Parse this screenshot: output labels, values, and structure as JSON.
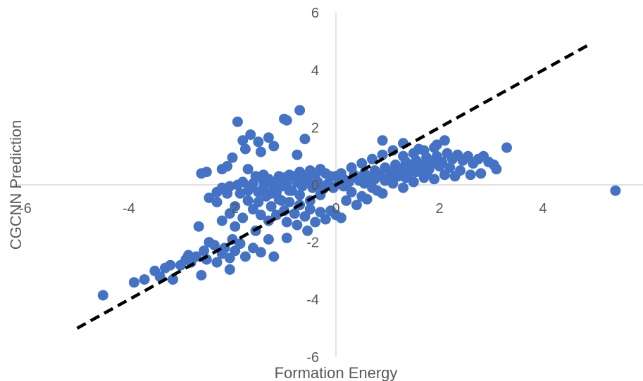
{
  "chart_data": {
    "type": "scatter",
    "title": "",
    "xlabel": "Formation Energy",
    "ylabel": "CGCNN Prediction",
    "xlim": [
      -6,
      6
    ],
    "ylim": [
      -6,
      6
    ],
    "x_ticks": [
      "-6",
      "-4",
      "-2",
      "0",
      "2",
      "4",
      "6"
    ],
    "y_ticks": [
      "-6",
      "-4",
      "-2",
      "0",
      "2",
      "4",
      "6"
    ],
    "x_tick_values": [
      -6,
      -4,
      -2,
      0,
      2,
      4,
      6
    ],
    "y_tick_values": [
      -6,
      -4,
      -2,
      0,
      2,
      4,
      6
    ],
    "grid": false,
    "legend": "none",
    "colors": {
      "points": "#4472C4",
      "reference_line": "#000000",
      "axis": "#D9D9D9",
      "text": "#595959"
    },
    "reference_line": {
      "style": "dashed",
      "x": [
        -5,
        4.9
      ],
      "y": [
        -5,
        4.9
      ]
    },
    "series": [
      {
        "points": [
          [
            -4.5,
            -3.85
          ],
          [
            -3.9,
            -3.4
          ],
          [
            -3.7,
            -3.3
          ],
          [
            -3.5,
            -3.0
          ],
          [
            -3.4,
            -3.2
          ],
          [
            -3.3,
            -2.9
          ],
          [
            -3.2,
            -2.8
          ],
          [
            -3.15,
            -3.3
          ],
          [
            -3.0,
            -2.8
          ],
          [
            -2.9,
            -2.6
          ],
          [
            -2.85,
            -2.45
          ],
          [
            -2.8,
            -2.7
          ],
          [
            -2.7,
            -2.5
          ],
          [
            -2.6,
            -3.15
          ],
          [
            -2.55,
            -2.3
          ],
          [
            -2.5,
            -2.6
          ],
          [
            -2.45,
            -2.0
          ],
          [
            -2.35,
            -2.1
          ],
          [
            -2.3,
            -2.7
          ],
          [
            -2.2,
            -2.4
          ],
          [
            -2.15,
            -2.2
          ],
          [
            -2.05,
            -2.95
          ],
          [
            -2.05,
            -2.55
          ],
          [
            -2.0,
            -1.9
          ],
          [
            -1.95,
            -2.3
          ],
          [
            -1.85,
            -2.05
          ],
          [
            -1.75,
            -2.5
          ],
          [
            -1.6,
            -2.2
          ],
          [
            -1.45,
            -2.35
          ],
          [
            -1.2,
            -2.5
          ],
          [
            -1.3,
            -1.9
          ],
          [
            -1.55,
            -1.6
          ],
          [
            -2.2,
            -1.25
          ],
          [
            -1.95,
            -1.45
          ],
          [
            -2.65,
            -1.45
          ],
          [
            -2.05,
            -1.0
          ],
          [
            -2.45,
            -0.45
          ],
          [
            -2.3,
            -0.25
          ],
          [
            -2.2,
            -0.1
          ],
          [
            -2.05,
            -0.05
          ],
          [
            -1.9,
            0.0
          ],
          [
            -1.8,
            0.1
          ],
          [
            -1.7,
            -0.2
          ],
          [
            -1.6,
            0.05
          ],
          [
            -1.5,
            -0.25
          ],
          [
            -1.4,
            0.15
          ],
          [
            -1.3,
            0.2
          ],
          [
            -1.2,
            0.1
          ],
          [
            -1.1,
            0.3
          ],
          [
            -1.0,
            0.25
          ],
          [
            -0.9,
            0.35
          ],
          [
            -0.8,
            0.3
          ],
          [
            -0.7,
            0.45
          ],
          [
            -0.6,
            0.3
          ],
          [
            -0.5,
            0.5
          ],
          [
            -0.4,
            0.35
          ],
          [
            -0.3,
            0.55
          ],
          [
            -0.2,
            0.4
          ],
          [
            -0.1,
            0.3
          ],
          [
            -1.5,
            -0.6
          ],
          [
            -1.35,
            -0.4
          ],
          [
            -1.25,
            -0.75
          ],
          [
            -1.1,
            -0.5
          ],
          [
            -1.0,
            -0.9
          ],
          [
            -0.9,
            -0.6
          ],
          [
            -0.8,
            -1.0
          ],
          [
            -0.7,
            -0.7
          ],
          [
            -0.6,
            -1.1
          ],
          [
            -0.5,
            -0.85
          ],
          [
            -0.4,
            -1.3
          ],
          [
            -0.3,
            -0.95
          ],
          [
            -0.2,
            -1.2
          ],
          [
            -0.1,
            -0.9
          ],
          [
            0.0,
            -1.05
          ],
          [
            0.1,
            -1.15
          ],
          [
            -1.6,
            -0.85
          ],
          [
            -1.45,
            -1.05
          ],
          [
            -1.3,
            -1.25
          ],
          [
            -1.15,
            -1.05
          ],
          [
            -0.95,
            -1.3
          ],
          [
            -0.75,
            -1.4
          ],
          [
            -0.55,
            -1.6
          ],
          [
            -0.95,
            -1.85
          ],
          [
            -1.8,
            -1.15
          ],
          [
            -1.95,
            -0.75
          ],
          [
            -1.85,
            -0.3
          ],
          [
            -1.7,
            -0.55
          ],
          [
            -1.55,
            0.3
          ],
          [
            -1.4,
            -0.1
          ],
          [
            -1.25,
            0.05
          ],
          [
            -1.15,
            -0.25
          ],
          [
            -1.05,
            -0.05
          ],
          [
            -0.95,
            0.05
          ],
          [
            -0.85,
            -0.2
          ],
          [
            -0.75,
            0.1
          ],
          [
            -0.65,
            -0.05
          ],
          [
            -0.55,
            0.15
          ],
          [
            -0.45,
            -0.1
          ],
          [
            -0.35,
            0.1
          ],
          [
            -0.25,
            -0.15
          ],
          [
            -0.15,
            0.05
          ],
          [
            -0.05,
            -0.1
          ],
          [
            -1.8,
            1.55
          ],
          [
            -1.9,
            2.2
          ],
          [
            -1.65,
            1.75
          ],
          [
            -1.5,
            1.5
          ],
          [
            -1.3,
            1.65
          ],
          [
            -1.2,
            1.35
          ],
          [
            -1.45,
            1.15
          ],
          [
            -1.75,
            1.25
          ],
          [
            -2.0,
            0.95
          ],
          [
            -2.1,
            0.65
          ],
          [
            -2.2,
            0.55
          ],
          [
            -2.5,
            0.45
          ],
          [
            -2.6,
            0.4
          ],
          [
            -1.0,
            2.3
          ],
          [
            -0.95,
            2.25
          ],
          [
            -0.7,
            2.6
          ],
          [
            -0.6,
            1.6
          ],
          [
            -0.75,
            1.05
          ],
          [
            -1.7,
            0.55
          ],
          [
            -1.4,
            0.35
          ],
          [
            0.05,
            0.05
          ],
          [
            0.15,
            0.2
          ],
          [
            0.25,
            0.1
          ],
          [
            0.35,
            0.3
          ],
          [
            0.45,
            0.15
          ],
          [
            0.55,
            0.4
          ],
          [
            0.65,
            0.25
          ],
          [
            0.75,
            0.5
          ],
          [
            0.85,
            0.35
          ],
          [
            0.95,
            0.6
          ],
          [
            1.05,
            0.45
          ],
          [
            1.15,
            0.7
          ],
          [
            1.25,
            0.55
          ],
          [
            1.35,
            0.8
          ],
          [
            1.45,
            0.6
          ],
          [
            1.55,
            0.85
          ],
          [
            1.65,
            0.7
          ],
          [
            1.75,
            0.95
          ],
          [
            1.85,
            0.75
          ],
          [
            1.95,
            1.0
          ],
          [
            2.05,
            0.8
          ],
          [
            2.15,
            1.1
          ],
          [
            2.25,
            0.9
          ],
          [
            2.35,
            1.05
          ],
          [
            2.45,
            0.85
          ],
          [
            2.55,
            1.0
          ],
          [
            2.65,
            0.75
          ],
          [
            2.75,
            0.9
          ],
          [
            2.85,
            1.0
          ],
          [
            2.95,
            0.8
          ],
          [
            3.05,
            0.7
          ],
          [
            3.1,
            0.55
          ],
          [
            3.3,
            1.3
          ],
          [
            2.8,
            0.4
          ],
          [
            2.6,
            0.35
          ],
          [
            2.1,
            1.55
          ],
          [
            1.95,
            1.4
          ],
          [
            1.6,
            1.25
          ],
          [
            1.3,
            1.45
          ],
          [
            0.9,
            1.55
          ],
          [
            0.3,
            -0.25
          ],
          [
            0.5,
            -0.4
          ],
          [
            0.7,
            -0.1
          ],
          [
            0.9,
            -0.3
          ],
          [
            1.1,
            0.05
          ],
          [
            1.3,
            -0.1
          ],
          [
            1.5,
            0.1
          ],
          [
            1.7,
            0.25
          ],
          [
            1.9,
            0.2
          ],
          [
            2.1,
            0.35
          ],
          [
            2.3,
            0.3
          ],
          [
            0.2,
            -0.55
          ],
          [
            0.4,
            -0.7
          ],
          [
            0.6,
            -0.5
          ],
          [
            0.8,
            -0.2
          ],
          [
            1.0,
            0.2
          ],
          [
            1.2,
            0.3
          ],
          [
            1.4,
            0.4
          ],
          [
            1.6,
            0.5
          ],
          [
            1.8,
            0.55
          ],
          [
            2.0,
            0.65
          ],
          [
            2.2,
            0.6
          ],
          [
            2.4,
            0.5
          ],
          [
            0.1,
            0.4
          ],
          [
            0.3,
            0.6
          ],
          [
            0.5,
            0.75
          ],
          [
            0.7,
            0.9
          ],
          [
            0.9,
            1.05
          ],
          [
            1.1,
            1.2
          ],
          [
            1.3,
            1.0
          ],
          [
            1.5,
            1.1
          ],
          [
            1.7,
            1.2
          ],
          [
            1.9,
            1.3
          ],
          [
            0.0,
            0.3
          ],
          [
            0.15,
            -0.05
          ],
          [
            0.35,
            0.35
          ],
          [
            0.55,
            0.05
          ],
          [
            0.75,
            0.2
          ],
          [
            0.95,
            0.15
          ],
          [
            1.15,
            0.35
          ],
          [
            1.35,
            0.25
          ],
          [
            1.55,
            0.45
          ],
          [
            1.75,
            0.4
          ],
          [
            5.4,
            -0.2
          ],
          [
            -0.3,
            -0.35
          ],
          [
            -0.5,
            -0.55
          ],
          [
            -0.7,
            -0.35
          ],
          [
            -0.9,
            -0.2
          ],
          [
            -1.05,
            -0.55
          ],
          [
            -1.25,
            -0.3
          ],
          [
            -1.65,
            -0.05
          ],
          [
            -2.1,
            -0.3
          ],
          [
            -2.3,
            -0.6
          ]
        ]
      }
    ]
  }
}
